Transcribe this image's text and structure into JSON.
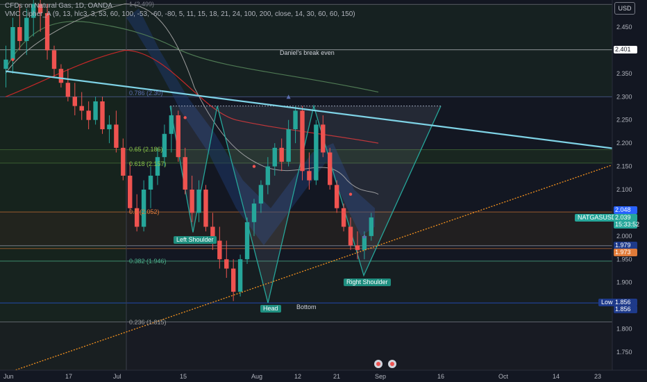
{
  "header": {
    "line1": "CFDs on Natural Gas, 1D, OANDA",
    "line2": "VMC Cipher_A (9, 13, hlc3, 3, 53, 60, 100, -53, -60, -80, 5, 11, 15, 18, 21, 24, 100, 200, close, 14, 30, 60, 60, 150)"
  },
  "currency_button": "USD",
  "price_axis_ticks": [
    "2.450",
    "2.350",
    "2.300",
    "2.250",
    "2.200",
    "2.150",
    "2.100",
    "2.000",
    "1.950",
    "1.900",
    "1.800",
    "1.750"
  ],
  "time_axis_ticks": [
    "Jun",
    "17",
    "Jul",
    "15",
    "Aug",
    "12",
    "21",
    "Sep",
    "16",
    "Oct",
    "14",
    "23"
  ],
  "price_tags": {
    "breakeven": "2.401",
    "price_high": "2.048",
    "symbol": "NATGASUSD",
    "last_price": "2.039",
    "countdown": "15:33:52",
    "level_a": "1.979",
    "level_b": "1.973",
    "low_label": "Low",
    "low_a": "1.856",
    "low_b": "1.856"
  },
  "fib_labels": {
    "f1": "1 (2.499)",
    "f786": "0.786 (2.30)",
    "f65": "0.65 (2.186)",
    "f618": "0.618 (2.157)",
    "f5": "0.5 (2.052)",
    "f382": "0.382 (1.946)",
    "f236": "0.236 (1.815)"
  },
  "pattern_labels": {
    "left_shoulder": "Left Shoulder",
    "head": "Head",
    "right_shoulder": "Right Shoulder",
    "bottom": "Bottom",
    "breakeven": "Daniel's break even"
  },
  "colors": {
    "background": "#131722",
    "bull": "#26a69a",
    "bear": "#ef5350",
    "trendline": "#7fd3e6",
    "support_dotted": "#f7931e",
    "fib_band_green": "#1f3a2a"
  },
  "chart_data": {
    "type": "candlestick",
    "symbol": "NATGASUSD",
    "timeframe": "1D",
    "y_range": [
      1.7,
      2.52
    ],
    "candles": [
      {
        "o": 2.36,
        "h": 2.41,
        "l": 2.32,
        "c": 2.38
      },
      {
        "o": 2.38,
        "h": 2.47,
        "l": 2.35,
        "c": 2.45
      },
      {
        "o": 2.45,
        "h": 2.5,
        "l": 2.4,
        "c": 2.42
      },
      {
        "o": 2.42,
        "h": 2.49,
        "l": 2.39,
        "c": 2.47
      },
      {
        "o": 2.47,
        "h": 2.52,
        "l": 2.43,
        "c": 2.5
      },
      {
        "o": 2.5,
        "h": 2.52,
        "l": 2.44,
        "c": 2.48
      },
      {
        "o": 2.48,
        "h": 2.5,
        "l": 2.38,
        "c": 2.4
      },
      {
        "o": 2.4,
        "h": 2.41,
        "l": 2.34,
        "c": 2.36
      },
      {
        "o": 2.36,
        "h": 2.37,
        "l": 2.32,
        "c": 2.33
      },
      {
        "o": 2.33,
        "h": 2.36,
        "l": 2.29,
        "c": 2.3
      },
      {
        "o": 2.3,
        "h": 2.33,
        "l": 2.26,
        "c": 2.28
      },
      {
        "o": 2.28,
        "h": 2.31,
        "l": 2.25,
        "c": 2.27
      },
      {
        "o": 2.27,
        "h": 2.29,
        "l": 2.23,
        "c": 2.25
      },
      {
        "o": 2.25,
        "h": 2.3,
        "l": 2.24,
        "c": 2.29
      },
      {
        "o": 2.29,
        "h": 2.3,
        "l": 2.22,
        "c": 2.23
      },
      {
        "o": 2.23,
        "h": 2.26,
        "l": 2.2,
        "c": 2.24
      },
      {
        "o": 2.24,
        "h": 2.27,
        "l": 2.18,
        "c": 2.19
      },
      {
        "o": 2.19,
        "h": 2.21,
        "l": 2.12,
        "c": 2.13
      },
      {
        "o": 2.13,
        "h": 2.16,
        "l": 2.05,
        "c": 2.06
      },
      {
        "o": 2.06,
        "h": 2.09,
        "l": 2.01,
        "c": 2.02
      },
      {
        "o": 2.02,
        "h": 2.12,
        "l": 2.01,
        "c": 2.1
      },
      {
        "o": 2.1,
        "h": 2.15,
        "l": 2.06,
        "c": 2.13
      },
      {
        "o": 2.13,
        "h": 2.19,
        "l": 2.11,
        "c": 2.17
      },
      {
        "o": 2.17,
        "h": 2.24,
        "l": 2.15,
        "c": 2.22
      },
      {
        "o": 2.22,
        "h": 2.28,
        "l": 2.18,
        "c": 2.26
      },
      {
        "o": 2.26,
        "h": 2.27,
        "l": 2.16,
        "c": 2.17
      },
      {
        "o": 2.17,
        "h": 2.19,
        "l": 2.09,
        "c": 2.1
      },
      {
        "o": 2.1,
        "h": 2.13,
        "l": 2.03,
        "c": 2.05
      },
      {
        "o": 2.05,
        "h": 2.12,
        "l": 2.03,
        "c": 2.1
      },
      {
        "o": 2.1,
        "h": 2.11,
        "l": 2.01,
        "c": 2.02
      },
      {
        "o": 2.02,
        "h": 2.05,
        "l": 1.97,
        "c": 1.99
      },
      {
        "o": 1.99,
        "h": 2.02,
        "l": 1.93,
        "c": 1.95
      },
      {
        "o": 1.95,
        "h": 1.99,
        "l": 1.91,
        "c": 1.93
      },
      {
        "o": 1.93,
        "h": 1.95,
        "l": 1.86,
        "c": 1.88
      },
      {
        "o": 1.88,
        "h": 1.96,
        "l": 1.87,
        "c": 1.95
      },
      {
        "o": 1.95,
        "h": 2.04,
        "l": 1.94,
        "c": 2.03
      },
      {
        "o": 2.03,
        "h": 2.08,
        "l": 2.0,
        "c": 2.07
      },
      {
        "o": 2.07,
        "h": 2.12,
        "l": 2.05,
        "c": 2.11
      },
      {
        "o": 2.11,
        "h": 2.17,
        "l": 2.09,
        "c": 2.15
      },
      {
        "o": 2.15,
        "h": 2.2,
        "l": 2.13,
        "c": 2.19
      },
      {
        "o": 2.19,
        "h": 2.21,
        "l": 2.14,
        "c": 2.16
      },
      {
        "o": 2.16,
        "h": 2.25,
        "l": 2.15,
        "c": 2.23
      },
      {
        "o": 2.23,
        "h": 2.28,
        "l": 2.2,
        "c": 2.27
      },
      {
        "o": 2.27,
        "h": 2.28,
        "l": 2.12,
        "c": 2.14
      },
      {
        "o": 2.14,
        "h": 2.18,
        "l": 2.1,
        "c": 2.12
      },
      {
        "o": 2.12,
        "h": 2.25,
        "l": 2.11,
        "c": 2.24
      },
      {
        "o": 2.24,
        "h": 2.26,
        "l": 2.17,
        "c": 2.18
      },
      {
        "o": 2.18,
        "h": 2.19,
        "l": 2.1,
        "c": 2.11
      },
      {
        "o": 2.11,
        "h": 2.12,
        "l": 2.05,
        "c": 2.06
      },
      {
        "o": 2.06,
        "h": 2.07,
        "l": 2.01,
        "c": 2.02
      },
      {
        "o": 2.02,
        "h": 2.04,
        "l": 1.97,
        "c": 1.98
      },
      {
        "o": 1.98,
        "h": 2.01,
        "l": 1.95,
        "c": 1.97
      },
      {
        "o": 1.97,
        "h": 2.01,
        "l": 1.95,
        "c": 2.0
      },
      {
        "o": 2.0,
        "h": 2.05,
        "l": 1.99,
        "c": 2.04
      }
    ]
  }
}
